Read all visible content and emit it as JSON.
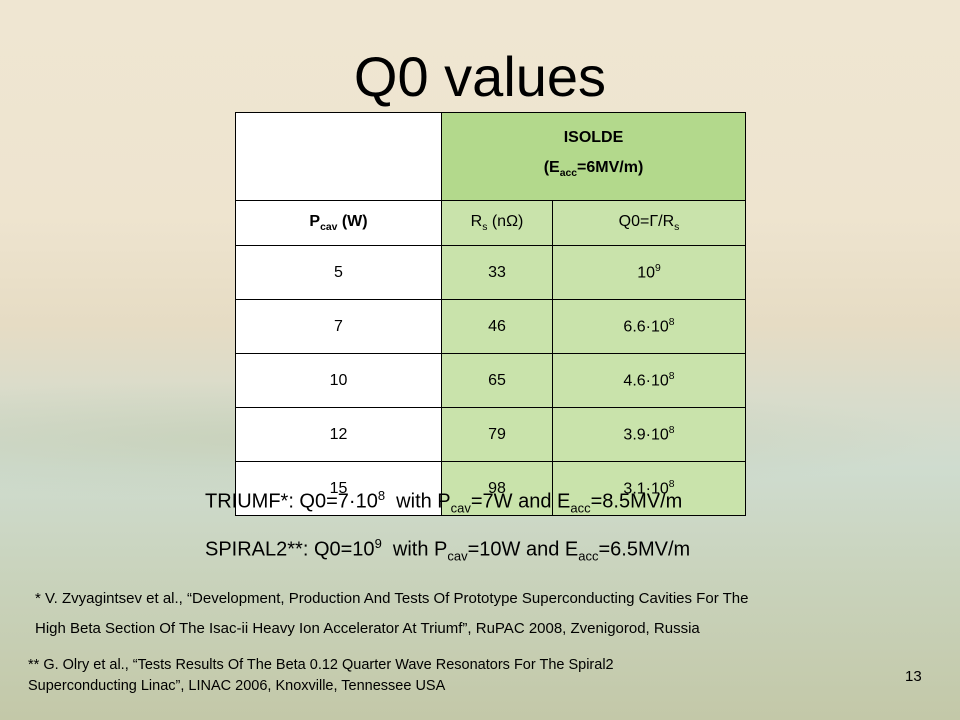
{
  "title": "Q0 values",
  "table": {
    "group_header": [
      "ISOLDE",
      [
        "(E",
        {
          "sub": "acc"
        },
        "=6MV/m)"
      ]
    ],
    "columns": [
      [
        "P",
        {
          "sub": "cav"
        },
        " (W)"
      ],
      [
        "R",
        {
          "sub": "s"
        },
        " (nΩ)"
      ],
      [
        "Q0=Γ/R",
        {
          "sub": "s"
        }
      ]
    ],
    "rows": [
      [
        "5",
        "33",
        [
          "10",
          {
            "sup": "9"
          }
        ]
      ],
      [
        "7",
        "46",
        [
          "6.6·10",
          {
            "sup": "8"
          }
        ]
      ],
      [
        "10",
        "65",
        [
          "4.6·10",
          {
            "sup": "8"
          }
        ]
      ],
      [
        "12",
        "79",
        [
          "3.9·10",
          {
            "sup": "8"
          }
        ]
      ],
      [
        "15",
        "98",
        [
          "3.1·10",
          {
            "sup": "8"
          }
        ]
      ]
    ]
  },
  "notes": [
    [
      "TRIUMF*: Q0=7·10",
      {
        "sup": "8"
      },
      "  with P",
      {
        "sub": "cav"
      },
      "=7W and E",
      {
        "sub": "acc"
      },
      "=8.5MV/m"
    ],
    [
      "SPIRAL2**: Q0=10",
      {
        "sup": "9"
      },
      "  with P",
      {
        "sub": "cav"
      },
      "=10W and E",
      {
        "sub": "acc"
      },
      "=6.5MV/m"
    ]
  ],
  "footnotes": [
    [
      "* V. Zvyagintsev et al., “Development, Production And Tests Of Prototype Superconducting Cavities For The",
      "High Beta Section Of The Isac-ii Heavy Ion Accelerator At Triumf”, RuPAC 2008, Zvenigorod, Russia"
    ],
    [
      "** G. Olry et al., “Tests Results Of The Beta 0.12 Quarter Wave Resonators For The Spiral2",
      "Superconducting Linac”, LINAC 2006, Knoxville, Tennessee USA"
    ]
  ],
  "page_number": "13"
}
